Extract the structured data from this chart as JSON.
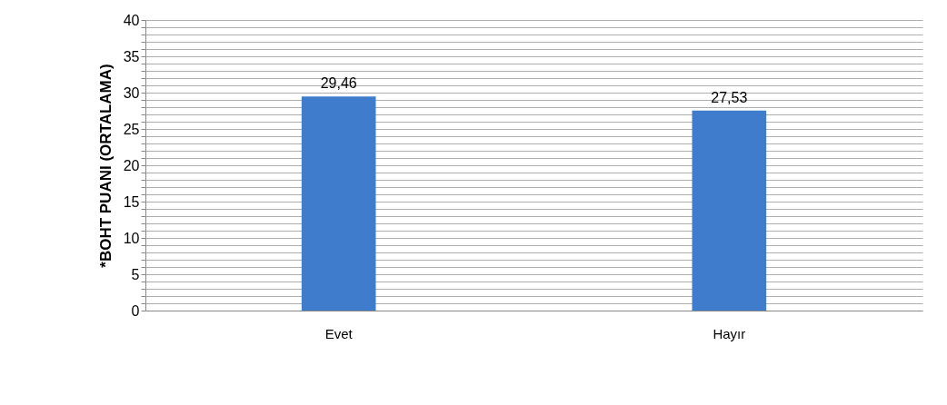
{
  "chart_data": {
    "type": "bar",
    "ylabel": "*BOHT  PUANI (ORTALAMA)",
    "categories": [
      "Evet",
      "Hayır"
    ],
    "values": [
      29.46,
      27.53
    ],
    "value_labels": [
      "29,46",
      "27,53"
    ],
    "color": "#3f7ccc",
    "ylim": [
      0,
      40
    ],
    "yticks": [
      0,
      {
        "value": 1,
        "label": null
      },
      {
        "value": 2,
        "label": null
      },
      {
        "value": 3,
        "label": null
      },
      {
        "value": 4,
        "label": null
      },
      5,
      {
        "value": 6,
        "label": null
      },
      {
        "value": 7,
        "label": null
      },
      {
        "value": 8,
        "label": null
      },
      {
        "value": 9,
        "label": null
      },
      10,
      {
        "value": 11,
        "label": null
      },
      {
        "value": 12,
        "label": null
      },
      {
        "value": 13,
        "label": null
      },
      {
        "value": 14,
        "label": null
      },
      15,
      {
        "value": 16,
        "label": null
      },
      {
        "value": 17,
        "label": null
      },
      {
        "value": 18,
        "label": null
      },
      {
        "value": 19,
        "label": null
      },
      20,
      {
        "value": 21,
        "label": null
      },
      {
        "value": 22,
        "label": null
      },
      {
        "value": 23,
        "label": null
      },
      {
        "value": 24,
        "label": null
      },
      25,
      {
        "value": 26,
        "label": null
      },
      {
        "value": 27,
        "label": null
      },
      {
        "value": 28,
        "label": null
      },
      {
        "value": 29,
        "label": null
      },
      30,
      {
        "value": 31,
        "label": null
      },
      {
        "value": 32,
        "label": null
      },
      {
        "value": 33,
        "label": null
      },
      {
        "value": 34,
        "label": null
      },
      35,
      {
        "value": 36,
        "label": null
      },
      {
        "value": 37,
        "label": null
      },
      {
        "value": 38,
        "label": null
      },
      {
        "value": 39,
        "label": null
      },
      40
    ],
    "grid": true,
    "legend": false
  }
}
